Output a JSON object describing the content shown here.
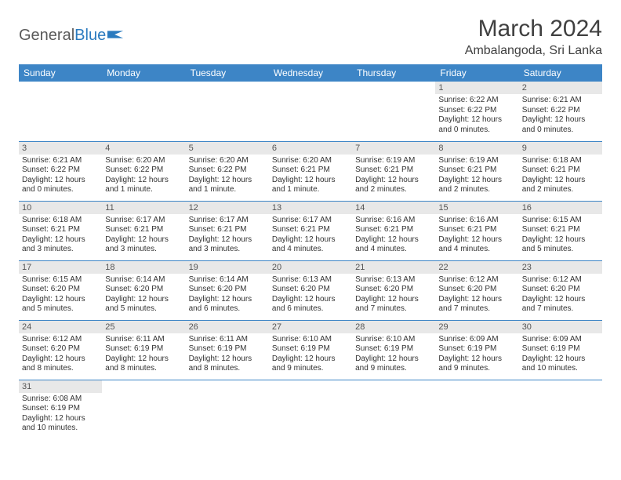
{
  "logo": {
    "text_gray": "General",
    "text_blue": "Blue"
  },
  "title": "March 2024",
  "location": "Ambalangoda, Sri Lanka",
  "colors": {
    "header_bg": "#3d85c6",
    "header_text": "#ffffff",
    "daynum_bg": "#e8e8e8",
    "row_border": "#3d85c6",
    "logo_gray": "#5a5a5a",
    "logo_blue": "#2b7bbf"
  },
  "weekdays": [
    "Sunday",
    "Monday",
    "Tuesday",
    "Wednesday",
    "Thursday",
    "Friday",
    "Saturday"
  ],
  "weeks": [
    [
      null,
      null,
      null,
      null,
      null,
      {
        "d": "1",
        "sr": "Sunrise: 6:22 AM",
        "ss": "Sunset: 6:22 PM",
        "dl": "Daylight: 12 hours and 0 minutes."
      },
      {
        "d": "2",
        "sr": "Sunrise: 6:21 AM",
        "ss": "Sunset: 6:22 PM",
        "dl": "Daylight: 12 hours and 0 minutes."
      }
    ],
    [
      {
        "d": "3",
        "sr": "Sunrise: 6:21 AM",
        "ss": "Sunset: 6:22 PM",
        "dl": "Daylight: 12 hours and 0 minutes."
      },
      {
        "d": "4",
        "sr": "Sunrise: 6:20 AM",
        "ss": "Sunset: 6:22 PM",
        "dl": "Daylight: 12 hours and 1 minute."
      },
      {
        "d": "5",
        "sr": "Sunrise: 6:20 AM",
        "ss": "Sunset: 6:22 PM",
        "dl": "Daylight: 12 hours and 1 minute."
      },
      {
        "d": "6",
        "sr": "Sunrise: 6:20 AM",
        "ss": "Sunset: 6:21 PM",
        "dl": "Daylight: 12 hours and 1 minute."
      },
      {
        "d": "7",
        "sr": "Sunrise: 6:19 AM",
        "ss": "Sunset: 6:21 PM",
        "dl": "Daylight: 12 hours and 2 minutes."
      },
      {
        "d": "8",
        "sr": "Sunrise: 6:19 AM",
        "ss": "Sunset: 6:21 PM",
        "dl": "Daylight: 12 hours and 2 minutes."
      },
      {
        "d": "9",
        "sr": "Sunrise: 6:18 AM",
        "ss": "Sunset: 6:21 PM",
        "dl": "Daylight: 12 hours and 2 minutes."
      }
    ],
    [
      {
        "d": "10",
        "sr": "Sunrise: 6:18 AM",
        "ss": "Sunset: 6:21 PM",
        "dl": "Daylight: 12 hours and 3 minutes."
      },
      {
        "d": "11",
        "sr": "Sunrise: 6:17 AM",
        "ss": "Sunset: 6:21 PM",
        "dl": "Daylight: 12 hours and 3 minutes."
      },
      {
        "d": "12",
        "sr": "Sunrise: 6:17 AM",
        "ss": "Sunset: 6:21 PM",
        "dl": "Daylight: 12 hours and 3 minutes."
      },
      {
        "d": "13",
        "sr": "Sunrise: 6:17 AM",
        "ss": "Sunset: 6:21 PM",
        "dl": "Daylight: 12 hours and 4 minutes."
      },
      {
        "d": "14",
        "sr": "Sunrise: 6:16 AM",
        "ss": "Sunset: 6:21 PM",
        "dl": "Daylight: 12 hours and 4 minutes."
      },
      {
        "d": "15",
        "sr": "Sunrise: 6:16 AM",
        "ss": "Sunset: 6:21 PM",
        "dl": "Daylight: 12 hours and 4 minutes."
      },
      {
        "d": "16",
        "sr": "Sunrise: 6:15 AM",
        "ss": "Sunset: 6:21 PM",
        "dl": "Daylight: 12 hours and 5 minutes."
      }
    ],
    [
      {
        "d": "17",
        "sr": "Sunrise: 6:15 AM",
        "ss": "Sunset: 6:20 PM",
        "dl": "Daylight: 12 hours and 5 minutes."
      },
      {
        "d": "18",
        "sr": "Sunrise: 6:14 AM",
        "ss": "Sunset: 6:20 PM",
        "dl": "Daylight: 12 hours and 5 minutes."
      },
      {
        "d": "19",
        "sr": "Sunrise: 6:14 AM",
        "ss": "Sunset: 6:20 PM",
        "dl": "Daylight: 12 hours and 6 minutes."
      },
      {
        "d": "20",
        "sr": "Sunrise: 6:13 AM",
        "ss": "Sunset: 6:20 PM",
        "dl": "Daylight: 12 hours and 6 minutes."
      },
      {
        "d": "21",
        "sr": "Sunrise: 6:13 AM",
        "ss": "Sunset: 6:20 PM",
        "dl": "Daylight: 12 hours and 7 minutes."
      },
      {
        "d": "22",
        "sr": "Sunrise: 6:12 AM",
        "ss": "Sunset: 6:20 PM",
        "dl": "Daylight: 12 hours and 7 minutes."
      },
      {
        "d": "23",
        "sr": "Sunrise: 6:12 AM",
        "ss": "Sunset: 6:20 PM",
        "dl": "Daylight: 12 hours and 7 minutes."
      }
    ],
    [
      {
        "d": "24",
        "sr": "Sunrise: 6:12 AM",
        "ss": "Sunset: 6:20 PM",
        "dl": "Daylight: 12 hours and 8 minutes."
      },
      {
        "d": "25",
        "sr": "Sunrise: 6:11 AM",
        "ss": "Sunset: 6:19 PM",
        "dl": "Daylight: 12 hours and 8 minutes."
      },
      {
        "d": "26",
        "sr": "Sunrise: 6:11 AM",
        "ss": "Sunset: 6:19 PM",
        "dl": "Daylight: 12 hours and 8 minutes."
      },
      {
        "d": "27",
        "sr": "Sunrise: 6:10 AM",
        "ss": "Sunset: 6:19 PM",
        "dl": "Daylight: 12 hours and 9 minutes."
      },
      {
        "d": "28",
        "sr": "Sunrise: 6:10 AM",
        "ss": "Sunset: 6:19 PM",
        "dl": "Daylight: 12 hours and 9 minutes."
      },
      {
        "d": "29",
        "sr": "Sunrise: 6:09 AM",
        "ss": "Sunset: 6:19 PM",
        "dl": "Daylight: 12 hours and 9 minutes."
      },
      {
        "d": "30",
        "sr": "Sunrise: 6:09 AM",
        "ss": "Sunset: 6:19 PM",
        "dl": "Daylight: 12 hours and 10 minutes."
      }
    ],
    [
      {
        "d": "31",
        "sr": "Sunrise: 6:08 AM",
        "ss": "Sunset: 6:19 PM",
        "dl": "Daylight: 12 hours and 10 minutes."
      },
      null,
      null,
      null,
      null,
      null,
      null
    ]
  ]
}
